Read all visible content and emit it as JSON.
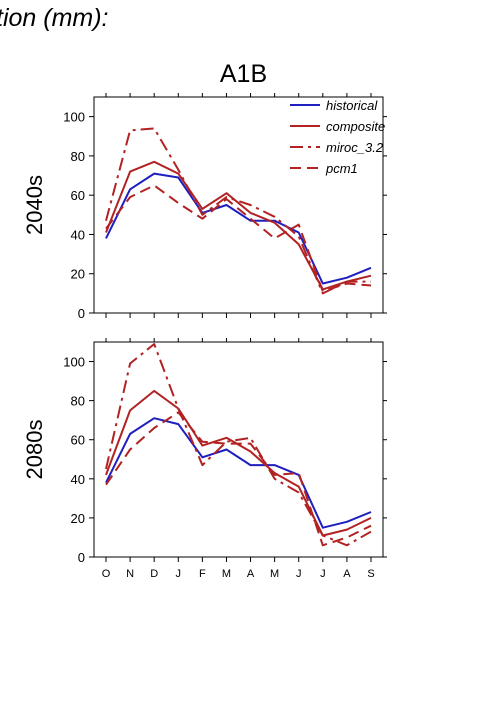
{
  "header": {
    "title_fragment": "tion (mm):"
  },
  "colors": {
    "historical": "#1f1fbf",
    "scenario": "#b22222",
    "axis": "#000000"
  },
  "chart_data": [
    {
      "type": "line",
      "title": "A1B",
      "ylabel": "2040s",
      "categories": [
        "O",
        "N",
        "D",
        "J",
        "F",
        "M",
        "A",
        "M",
        "J",
        "J",
        "A",
        "S"
      ],
      "ylim": [
        0,
        110
      ],
      "yticks": [
        0,
        20,
        40,
        60,
        80,
        100
      ],
      "grid": false,
      "legend": {
        "position": "top-right",
        "entries": [
          "historical",
          "composite",
          "miroc_3.2",
          "pcm1"
        ]
      },
      "series": [
        {
          "name": "historical",
          "style": "solid",
          "color": "#1f1fbf",
          "values": [
            38,
            63,
            71,
            69,
            51,
            55,
            47,
            47,
            41,
            15,
            18,
            23
          ]
        },
        {
          "name": "composite",
          "style": "solid",
          "color": "#b22222",
          "values": [
            41,
            72,
            77,
            71,
            53,
            61,
            51,
            46,
            35,
            12,
            16,
            19
          ]
        },
        {
          "name": "miroc_3.2",
          "style": "dashdot",
          "color": "#b22222",
          "values": [
            47,
            93,
            94,
            73,
            50,
            59,
            55,
            49,
            39,
            10,
            16,
            16
          ]
        },
        {
          "name": "pcm1",
          "style": "dashed",
          "color": "#b22222",
          "values": [
            43,
            59,
            65,
            56,
            48,
            58,
            48,
            38,
            45,
            11,
            15,
            14
          ]
        }
      ]
    },
    {
      "type": "line",
      "title": "",
      "ylabel": "2080s",
      "categories": [
        "O",
        "N",
        "D",
        "J",
        "F",
        "M",
        "A",
        "M",
        "J",
        "J",
        "A",
        "S"
      ],
      "ylim": [
        0,
        110
      ],
      "yticks": [
        0,
        20,
        40,
        60,
        80,
        100
      ],
      "grid": false,
      "series": [
        {
          "name": "historical",
          "style": "solid",
          "color": "#1f1fbf",
          "values": [
            38,
            63,
            71,
            68,
            51,
            55,
            47,
            47,
            42,
            15,
            18,
            23
          ]
        },
        {
          "name": "composite",
          "style": "solid",
          "color": "#b22222",
          "values": [
            42,
            75,
            85,
            76,
            57,
            61,
            54,
            43,
            36,
            11,
            14,
            20
          ]
        },
        {
          "name": "miroc_3.2",
          "style": "dashdot",
          "color": "#b22222",
          "values": [
            45,
            99,
            109,
            76,
            47,
            59,
            61,
            40,
            33,
            11,
            6,
            13
          ]
        },
        {
          "name": "pcm1",
          "style": "dashed",
          "color": "#b22222",
          "values": [
            37,
            55,
            66,
            74,
            59,
            58,
            58,
            42,
            43,
            6,
            10,
            16
          ]
        }
      ]
    }
  ]
}
